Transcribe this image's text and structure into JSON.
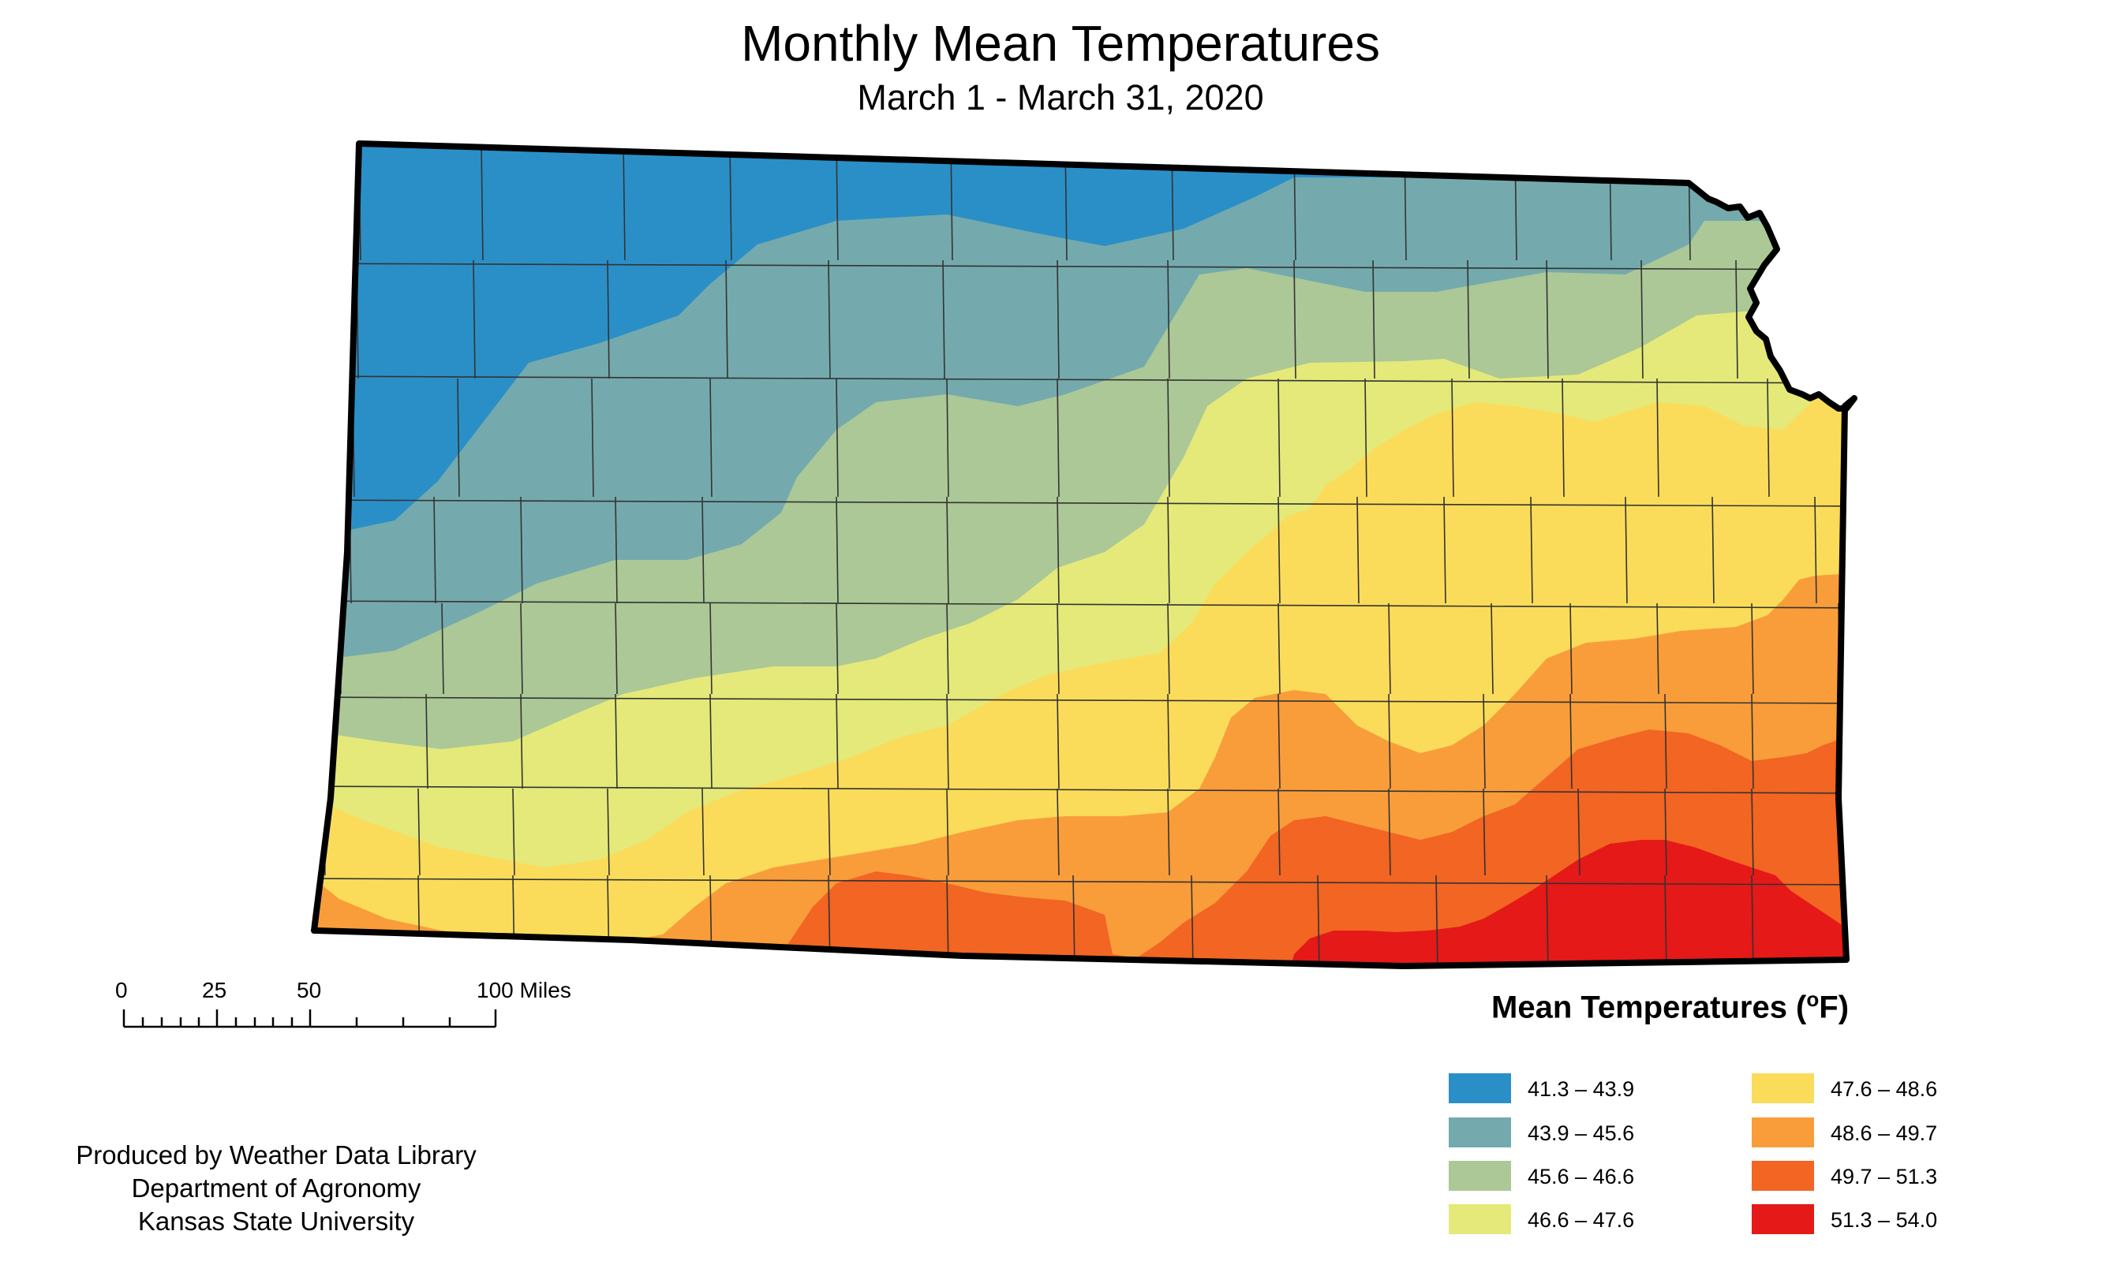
{
  "map": {
    "title": "Monthly Mean Temperatures",
    "subtitle": "March 1 - March 31, 2020",
    "region": "Kansas"
  },
  "legend": {
    "title": "Mean Temperatures (",
    "unit_sup": "o",
    "unit_suffix": "F)",
    "classes": [
      {
        "label": "41.3 – 43.9",
        "color": "#2b8fc7"
      },
      {
        "label": "43.9 – 45.6",
        "color": "#74aaad"
      },
      {
        "label": "45.6 – 46.6",
        "color": "#abc896"
      },
      {
        "label": "46.6 – 47.6",
        "color": "#e4e97a"
      },
      {
        "label": "47.6 – 48.6",
        "color": "#fbdc5a"
      },
      {
        "label": "48.6 – 49.7",
        "color": "#f99d3a"
      },
      {
        "label": "49.7 – 51.3",
        "color": "#f26522"
      },
      {
        "label": "51.3 – 54.0",
        "color": "#e41918"
      }
    ]
  },
  "scale_bar": {
    "labels": [
      "0",
      "25",
      "50",
      "100 Miles"
    ]
  },
  "credits": {
    "line1": "Produced by Weather Data Library",
    "line2": "Department of Agronomy",
    "line3": "Kansas State University"
  }
}
